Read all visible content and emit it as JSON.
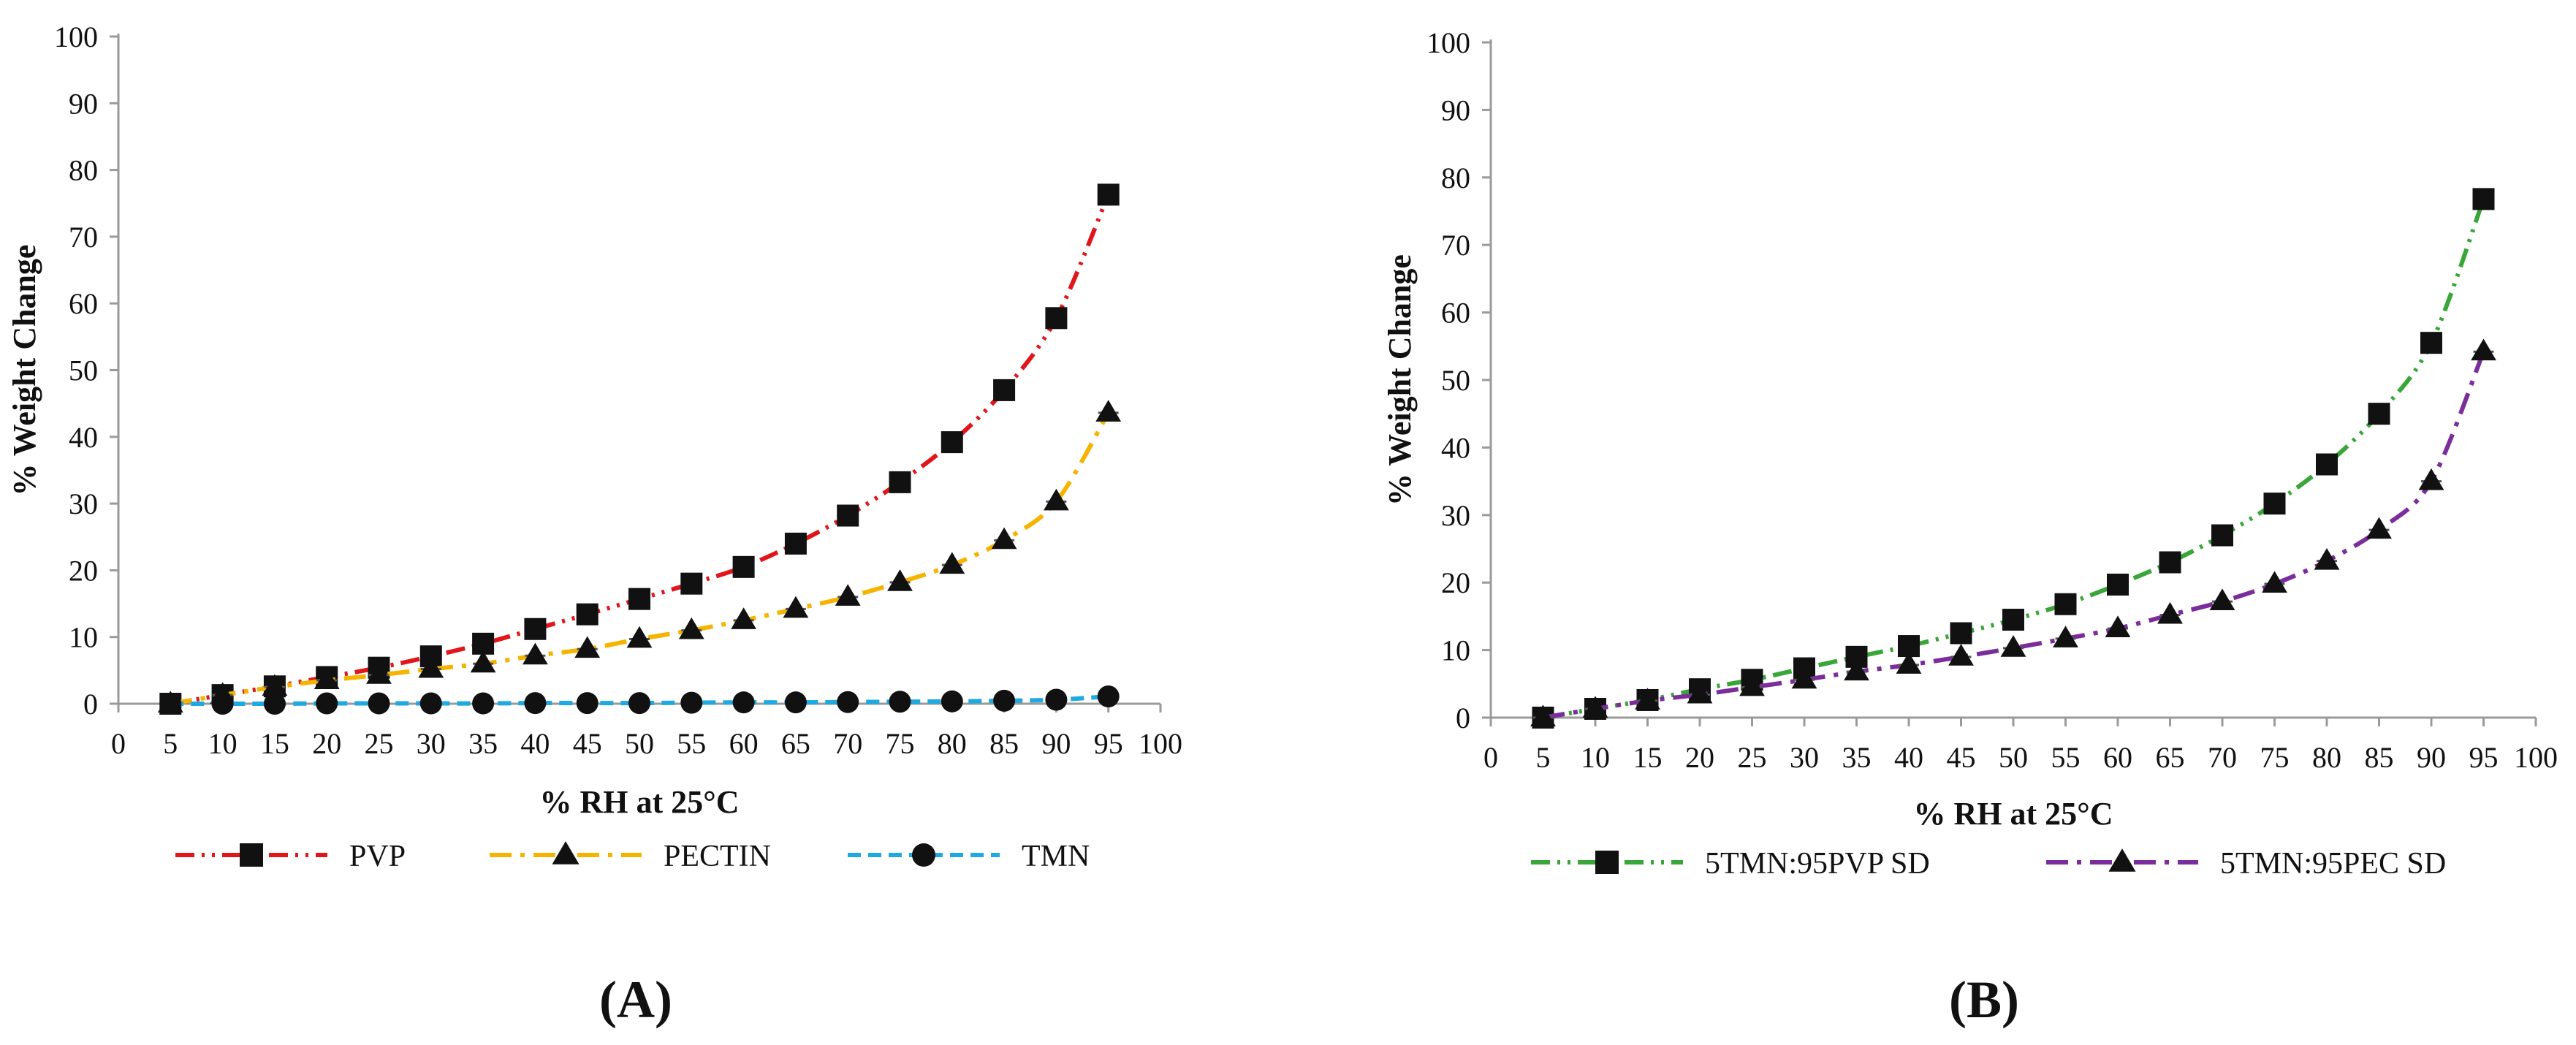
{
  "chart_data": [
    {
      "type": "line",
      "panel_label": "(A)",
      "xlabel": "% RH at 25°C",
      "ylabel": "% Weight Change",
      "xlim": [
        0,
        100
      ],
      "ylim": [
        0,
        100
      ],
      "x_ticks": [
        0,
        5,
        10,
        15,
        20,
        25,
        30,
        35,
        40,
        45,
        50,
        55,
        60,
        65,
        70,
        75,
        80,
        85,
        90,
        95,
        100
      ],
      "y_ticks": [
        0,
        10,
        20,
        30,
        40,
        50,
        60,
        70,
        80,
        90,
        100
      ],
      "grid": false,
      "legend_position": "bottom",
      "x": [
        5,
        10,
        15,
        20,
        25,
        30,
        35,
        40,
        45,
        50,
        55,
        60,
        65,
        70,
        75,
        80,
        85,
        90,
        95
      ],
      "series": [
        {
          "name": "PVP",
          "color": "#e0161b",
          "dash": "dash-dot-dot",
          "marker": "square",
          "values": [
            0,
            1.3,
            2.6,
            4,
            5.4,
            7.1,
            9,
            11.2,
            13.4,
            15.7,
            18,
            20.5,
            24,
            28.2,
            33.2,
            39.2,
            47,
            57.8,
            76.3
          ]
        },
        {
          "name": "PECTIN",
          "color": "#f5b400",
          "dash": "dash-dot",
          "marker": "triangle",
          "values": [
            0,
            1.3,
            2.5,
            3.5,
            4.3,
            5.2,
            6,
            7.2,
            8.2,
            9.7,
            11,
            12.5,
            14.2,
            16,
            18.2,
            20.8,
            24.5,
            30.3,
            43.6
          ]
        },
        {
          "name": "TMN",
          "color": "#1fa9e1",
          "dash": "dashed",
          "marker": "circle",
          "values": [
            0,
            0,
            0,
            0.05,
            0.05,
            0.05,
            0.05,
            0.1,
            0.1,
            0.1,
            0.15,
            0.2,
            0.2,
            0.25,
            0.3,
            0.35,
            0.45,
            0.6,
            1.1
          ]
        }
      ]
    },
    {
      "type": "line",
      "panel_label": "(B)",
      "xlabel": "% RH at 25°C",
      "ylabel": "% Weight Change",
      "xlim": [
        0,
        100
      ],
      "ylim": [
        0,
        100
      ],
      "x_ticks": [
        0,
        5,
        10,
        15,
        20,
        25,
        30,
        35,
        40,
        45,
        50,
        55,
        60,
        65,
        70,
        75,
        80,
        85,
        90,
        95,
        100
      ],
      "y_ticks": [
        0,
        10,
        20,
        30,
        40,
        50,
        60,
        70,
        80,
        90,
        100
      ],
      "grid": false,
      "legend_position": "bottom",
      "x": [
        5,
        10,
        15,
        20,
        25,
        30,
        35,
        40,
        45,
        50,
        55,
        60,
        65,
        70,
        75,
        80,
        85,
        90,
        95
      ],
      "series": [
        {
          "name": "5TMN:95PVP SD",
          "color": "#3aa63a",
          "dash": "dash-dot-dot",
          "marker": "square",
          "values": [
            0,
            1.3,
            2.6,
            4.2,
            5.6,
            7.3,
            9,
            10.6,
            12.5,
            14.5,
            16.8,
            19.7,
            23,
            27,
            31.7,
            37.5,
            45,
            55.5,
            76.8
          ]
        },
        {
          "name": "5TMN:95PEC SD",
          "color": "#7b2d9b",
          "dash": "dash-dot",
          "marker": "triangle",
          "values": [
            0,
            1.3,
            2.5,
            3.4,
            4.5,
            5.6,
            6.8,
            7.8,
            9,
            10.3,
            11.7,
            13.2,
            15.2,
            17.2,
            19.8,
            23.2,
            27.8,
            35,
            54.2
          ]
        }
      ]
    }
  ]
}
